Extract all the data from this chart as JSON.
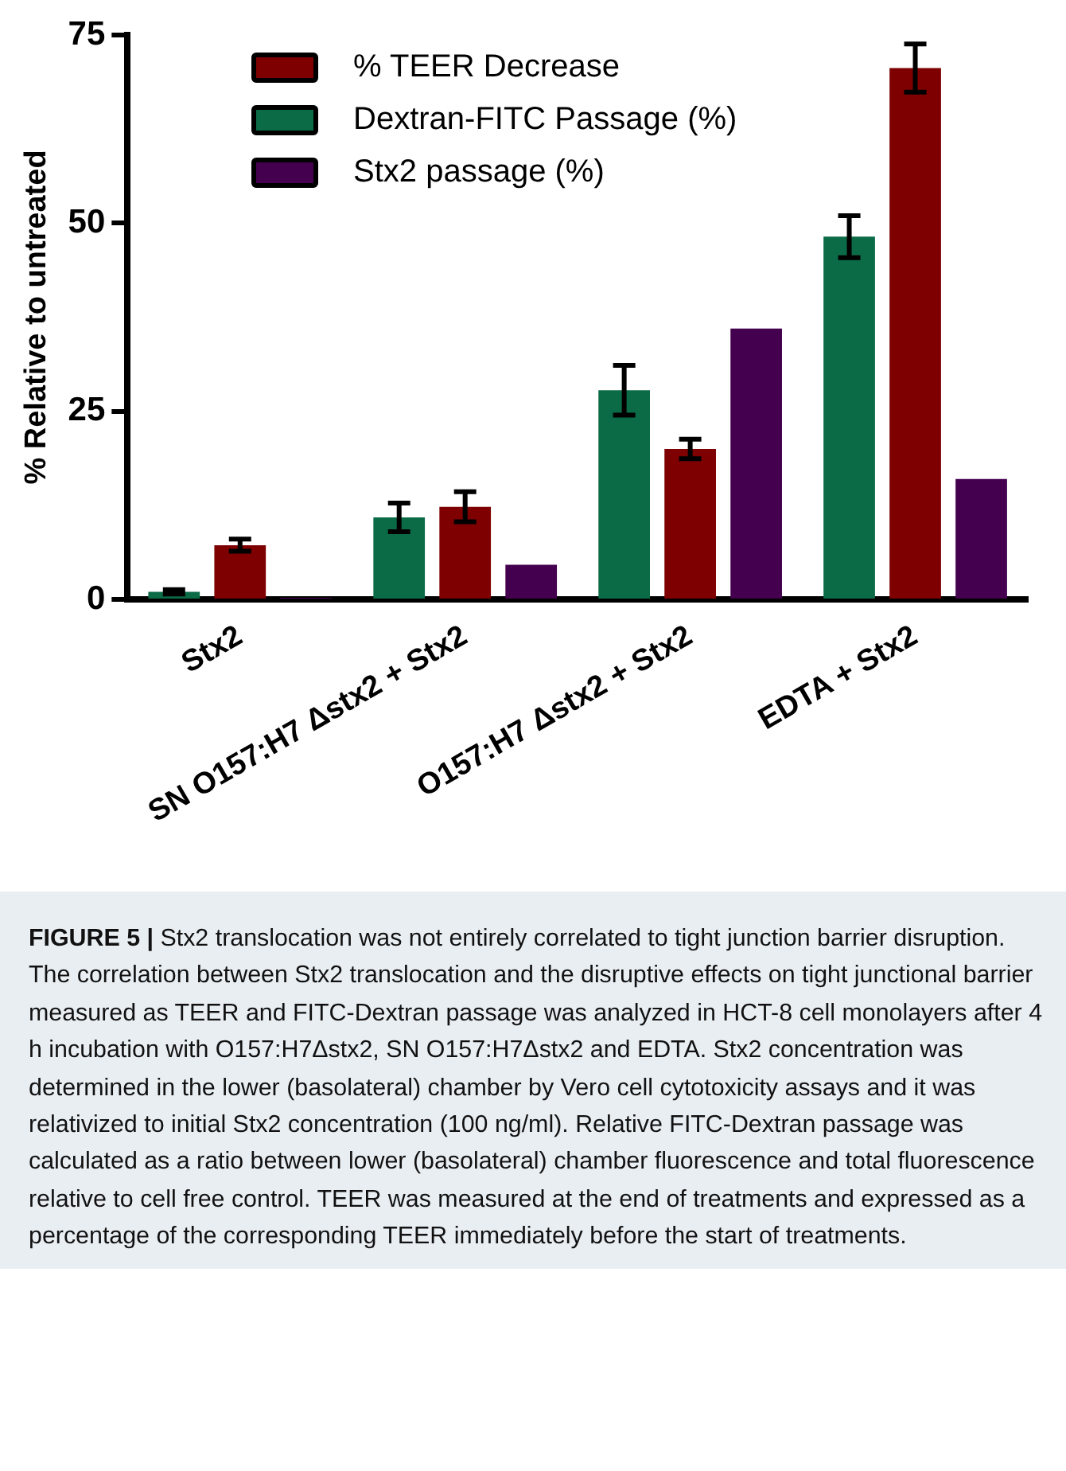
{
  "chart_data": {
    "type": "bar",
    "ylabel": "% Relative to untreated",
    "categories": [
      "Stx2",
      "SN O157:H7 Δstx2 + Stx2",
      "O157:H7 Δstx2 + Stx2",
      "EDTA + Stx2"
    ],
    "series": [
      {
        "name": "Dextran-FITC Passage  (%)",
        "color": "#0b6b47",
        "values": [
          1.0,
          10.9,
          27.8,
          48.2
        ],
        "errors": [
          0.3,
          1.9,
          3.3,
          2.8
        ]
      },
      {
        "name": "% TEER Decrease",
        "color": "#7e0000",
        "values": [
          7.2,
          12.3,
          20.0,
          70.6
        ],
        "errors": [
          0.8,
          2.0,
          1.3,
          3.2
        ]
      },
      {
        "name": "Stx2 passage (%)",
        "color": "#44004f",
        "values": [
          0.2,
          4.6,
          36.0,
          16.0
        ]
      }
    ],
    "ylim": [
      0,
      75
    ],
    "yticks": [
      0,
      25,
      50,
      75
    ],
    "grid": false,
    "legend": "top left",
    "annotations": [
      "FIGURE 5 | Stx2 translocation was not entirely correlated to tight junction barrier disruption. The correlation between Stx2 translocation and the disruptive effects on tight junctional barrier measured as TEER and FITC-Dextran passage was analyzed in HCT-8 cell monolayers after 4 h incubation with O157:H7Δstx2, SN O157:H7Δstx2 and EDTA. Stx2 concentration was determined in the lower (basolateral) chamber by Vero cell cytotoxicity assays and it was relativized to initial Stx2 concentration (100 ng/ml). Relative FITC-Dextran passage was calculated as a ratio between lower (basolateral) chamber fluorescence and total fluorescence relative to cell free control. TEER was measured at the end of treatments and expressed as a percentage of the corresponding TEER immediately before the start of treatments."
    ]
  }
}
